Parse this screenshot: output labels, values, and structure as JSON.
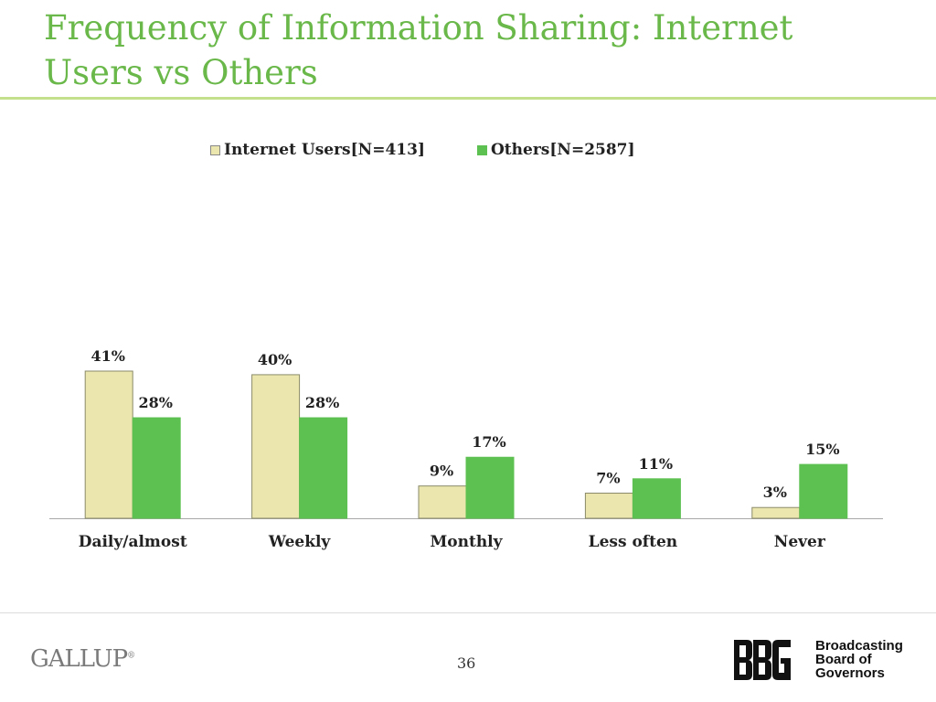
{
  "slide": {
    "title": "Frequency of Information Sharing: Internet Users vs Others",
    "page_number": "36"
  },
  "branding": {
    "gallup_logo": "GALLUP",
    "bbg_mark": "BBG",
    "bbg_name": [
      "Broadcasting",
      "Board of",
      "Governors"
    ]
  },
  "colors": {
    "title": "#6ab84a",
    "internet_users": "#ebe6ad",
    "others": "#5cc150",
    "bar_outline": "#8a8a6a"
  },
  "chart_data": {
    "type": "bar",
    "title": "Frequency of Information Sharing: Internet Users vs Others",
    "xlabel": "",
    "ylabel": "",
    "ylim": [
      0,
      41
    ],
    "grid": false,
    "legend_position": "top-center",
    "categories": [
      "Daily/almost",
      "Weekly",
      "Monthly",
      "Less often",
      "Never"
    ],
    "series": [
      {
        "name": "Internet Users[N=413]",
        "values": [
          41,
          40,
          9,
          7,
          3
        ],
        "labels": [
          "41%",
          "40%",
          "9%",
          "7%",
          "3%"
        ]
      },
      {
        "name": "Others[N=2587]",
        "values": [
          28,
          28,
          17,
          11,
          15
        ],
        "labels": [
          "28%",
          "28%",
          "17%",
          "11%",
          "15%"
        ]
      }
    ]
  }
}
